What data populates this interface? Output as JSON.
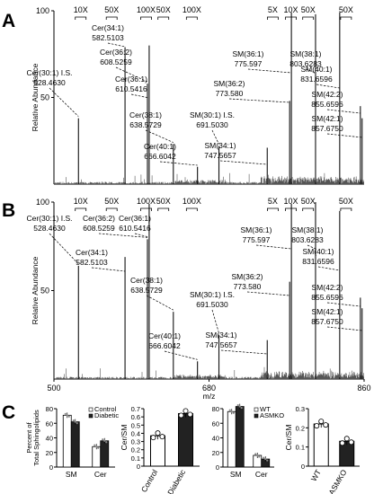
{
  "chart_data": [
    {
      "panel": "A",
      "type": "line",
      "ylabel": "Relative Abundance",
      "xlim": [
        500,
        860
      ],
      "ylim": [
        0,
        100
      ],
      "yticks": [
        50,
        100
      ],
      "zoom_markers": [
        {
          "label": "10X",
          "x": 531
        },
        {
          "label": "50X",
          "x": 567
        },
        {
          "label": "100X",
          "x": 607
        },
        {
          "label": "50X",
          "x": 627
        },
        {
          "label": "100X",
          "x": 660
        },
        {
          "label": "5X",
          "x": 754
        },
        {
          "label": "10X",
          "x": 775
        },
        {
          "label": "50X",
          "x": 795
        },
        {
          "label": "50X",
          "x": 839
        }
      ],
      "peaks": [
        {
          "label": "Cer(30:1) I.S.",
          "mz": "528.4630",
          "x": 528.463,
          "y": 38
        },
        {
          "label": "Cer(34:1)",
          "mz": "582.5103",
          "x": 582.5103,
          "y": 79
        },
        {
          "label": "Cer(36:2)",
          "mz": "608.5259",
          "x": 608.5259,
          "y": 58
        },
        {
          "label": "Cer(36:1)",
          "mz": "610.5416",
          "x": 610.5416,
          "y": 80
        },
        {
          "label": "Cer(38:1)",
          "mz": "638.5729",
          "x": 638.5729,
          "y": 23
        },
        {
          "label": "Cer(40:1)",
          "mz": "666.6042",
          "x": 666.6042,
          "y": 10
        },
        {
          "label": "SM(30:1) I.S.",
          "mz": "691.5030",
          "x": 691.503,
          "y": 22
        },
        {
          "label": "SM(34:1)",
          "mz": "747.5657",
          "x": 747.5657,
          "y": 21
        },
        {
          "label": "SM(36:2)",
          "mz": "773.580",
          "x": 773.58,
          "y": 48
        },
        {
          "label": "SM(36:1)",
          "mz": "775.597",
          "x": 775.597,
          "y": 99
        },
        {
          "label": "SM(38:1)",
          "mz": "803.6283",
          "x": 803.6283,
          "y": 98
        },
        {
          "label": "SM(40:1)",
          "mz": "831.6596",
          "x": 831.6596,
          "y": 99
        },
        {
          "label": "SM(42:2)",
          "mz": "855.6596",
          "x": 855.6596,
          "y": 45
        },
        {
          "label": "SM(42:1)",
          "mz": "857.6750",
          "x": 857.675,
          "y": 38
        }
      ]
    },
    {
      "panel": "B",
      "type": "line",
      "ylabel": "Relative Abundance",
      "xlabel": "m/z",
      "xlim": [
        500,
        860
      ],
      "xticks": [
        500,
        680,
        860
      ],
      "ylim": [
        0,
        100
      ],
      "yticks": [
        50,
        100
      ],
      "zoom_markers": [
        {
          "label": "10X",
          "x": 531
        },
        {
          "label": "50X",
          "x": 567
        },
        {
          "label": "100X",
          "x": 607
        },
        {
          "label": "50X",
          "x": 627
        },
        {
          "label": "100X",
          "x": 660
        },
        {
          "label": "5X",
          "x": 754
        },
        {
          "label": "10X",
          "x": 775
        },
        {
          "label": "50X",
          "x": 795
        },
        {
          "label": "50X",
          "x": 839
        }
      ],
      "peaks": [
        {
          "label": "Cer(30:1) I.S.",
          "mz": "528.4630",
          "x": 528.463,
          "y": 64
        },
        {
          "label": "Cer(34:1)",
          "mz": "582.5103",
          "x": 582.5103,
          "y": 69
        },
        {
          "label": "Cer(36:2)",
          "mz": "608.5259",
          "x": 608.5259,
          "y": 79
        },
        {
          "label": "Cer(36:1)",
          "mz": "610.5416",
          "x": 610.5416,
          "y": 99
        },
        {
          "label": "Cer(38:1)",
          "mz": "638.5729",
          "x": 638.5729,
          "y": 38
        },
        {
          "label": "Cer(40:1)",
          "mz": "666.6042",
          "x": 666.6042,
          "y": 10
        },
        {
          "label": "SM(30:1) I.S.",
          "mz": "691.5030",
          "x": 691.503,
          "y": 25
        },
        {
          "label": "SM(34:1)",
          "mz": "747.5657",
          "x": 747.5657,
          "y": 22
        },
        {
          "label": "SM(36:2)",
          "mz": "773.580",
          "x": 773.58,
          "y": 55
        },
        {
          "label": "SM(36:1)",
          "mz": "775.597",
          "x": 775.597,
          "y": 99
        },
        {
          "label": "SM(38:1)",
          "mz": "803.6283",
          "x": 803.6283,
          "y": 100
        },
        {
          "label": "SM(40:1)",
          "mz": "831.6596",
          "x": 831.6596,
          "y": 95
        },
        {
          "label": "SM(42:2)",
          "mz": "855.6596",
          "x": 855.6596,
          "y": 46
        },
        {
          "label": "SM(42:1)",
          "mz": "857.6750",
          "x": 857.675,
          "y": 40
        }
      ]
    },
    {
      "panel": "C1",
      "type": "bar",
      "ylabel": "Percent of Total Sphingolipids",
      "categories": [
        "SM",
        "Cer"
      ],
      "ylim": [
        0,
        80
      ],
      "yticks": [
        0,
        20,
        40,
        60,
        80
      ],
      "legend": "top-right",
      "series": [
        {
          "name": "Control",
          "color": "#ffffff",
          "values": [
            71,
            28
          ]
        },
        {
          "name": "Diabetic",
          "color": "#222222",
          "values": [
            62,
            36
          ]
        }
      ]
    },
    {
      "panel": "C2",
      "type": "bar",
      "ylabel": "Cer/SM",
      "categories": [
        "Control",
        "Diabetic"
      ],
      "ylim": [
        0,
        0.7
      ],
      "yticks": [
        0,
        0.1,
        0.2,
        0.3,
        0.4,
        0.5,
        0.6,
        0.7
      ],
      "values": [
        0.37,
        0.64
      ],
      "colors": [
        "#ffffff",
        "#222222"
      ]
    },
    {
      "panel": "C3",
      "type": "bar",
      "categories": [
        "SM",
        "Cer"
      ],
      "ylim": [
        0,
        80
      ],
      "yticks": [
        0,
        20,
        40,
        60,
        80
      ],
      "legend": "top-right",
      "series": [
        {
          "name": "WT",
          "color": "#ffffff",
          "values": [
            76,
            16
          ]
        },
        {
          "name": "ASMKO",
          "color": "#222222",
          "values": [
            83,
            11
          ]
        }
      ]
    },
    {
      "panel": "C4",
      "type": "bar",
      "ylabel": "Cer/SM",
      "categories": [
        "WT",
        "ASMKO"
      ],
      "ylim": [
        0,
        0.3
      ],
      "yticks": [
        0,
        0.1,
        0.2,
        0.3
      ],
      "values": [
        0.22,
        0.13
      ],
      "colors": [
        "#ffffff",
        "#222222"
      ]
    }
  ]
}
